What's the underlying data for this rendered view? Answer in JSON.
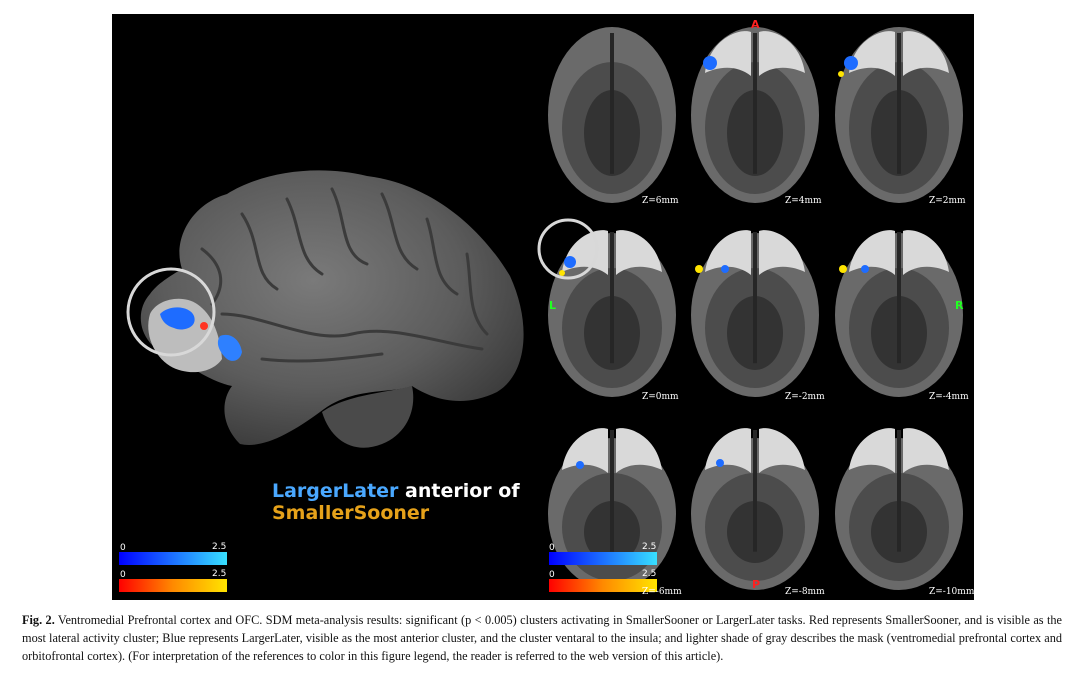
{
  "figure": {
    "overlay": {
      "line1_blue": "LargerLater",
      "line1_white": " anterior of",
      "line2_orange": "SmallerSooner"
    },
    "colorbars_left": {
      "blue": {
        "min": "0",
        "max": "2.5"
      },
      "red": {
        "min": "0",
        "max": "2.5"
      }
    },
    "colorbars_right": {
      "blue": {
        "min": "0",
        "max": "2.5"
      },
      "red": {
        "min": "0",
        "max": "2.5"
      }
    },
    "orientation": {
      "anterior": "A",
      "posterior": "P",
      "left": "L",
      "right": "R"
    },
    "slices": [
      "Z=6mm",
      "Z=4mm",
      "Z=2mm",
      "Z=0mm",
      "Z=-2mm",
      "Z=-4mm",
      "Z=-6mm",
      "Z=-8mm",
      "Z=-10mm"
    ],
    "colors": {
      "blue": "#1e6cff",
      "cyan": "#38e0ff",
      "red": "#ff2200",
      "yellow": "#ffe400",
      "orange_text": "#e6a21a",
      "blue_text": "#4aa8ff"
    }
  },
  "caption": {
    "label": "Fig. 2.",
    "text": " Ventromedial Prefrontal cortex and OFC. SDM meta-analysis results: significant (p < 0.005) clusters activating in SmallerSooner or LargerLater tasks. Red represents SmallerSooner, and is visible as the most lateral activity cluster; Blue represents LargerLater, visible as the most anterior cluster, and the cluster ventaral to the insula; and lighter shade of gray describes the mask (ventromedial prefrontal cortex and orbitofrontal cortex). (For interpretation of the references to color in this figure legend, the reader is referred to the web version of this article)."
  }
}
